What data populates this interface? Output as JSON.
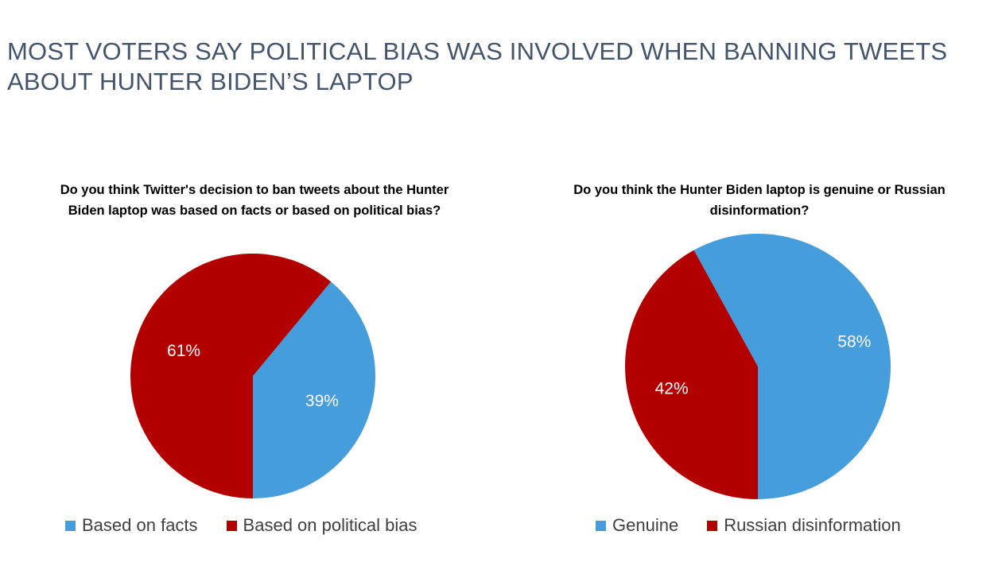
{
  "page": {
    "title": "MOST VOTERS SAY POLITICAL BIAS WAS INVOLVED WHEN BANNING TWEETS ABOUT HUNTER BIDEN’S LAPTOP"
  },
  "colors": {
    "blue": "#469ddb",
    "red": "#b20000"
  },
  "chart_data": [
    {
      "type": "pie",
      "title": "Do you think Twitter's decision to ban tweets about the Hunter Biden laptop was based on facts or based on political bias?",
      "legend_position": "bottom",
      "slices": [
        {
          "label": "Based on facts",
          "value": 39,
          "display": "39%",
          "color": "#469ddb"
        },
        {
          "label": "Based on political bias",
          "value": 61,
          "display": "61%",
          "color": "#b20000"
        }
      ]
    },
    {
      "type": "pie",
      "title": "Do you think the Hunter Biden laptop is genuine or Russian disinformation?",
      "legend_position": "bottom",
      "slices": [
        {
          "label": "Genuine",
          "value": 58,
          "display": "58%",
          "color": "#469ddb"
        },
        {
          "label": "Russian disinformation",
          "value": 42,
          "display": "42%",
          "color": "#b20000"
        }
      ]
    }
  ]
}
